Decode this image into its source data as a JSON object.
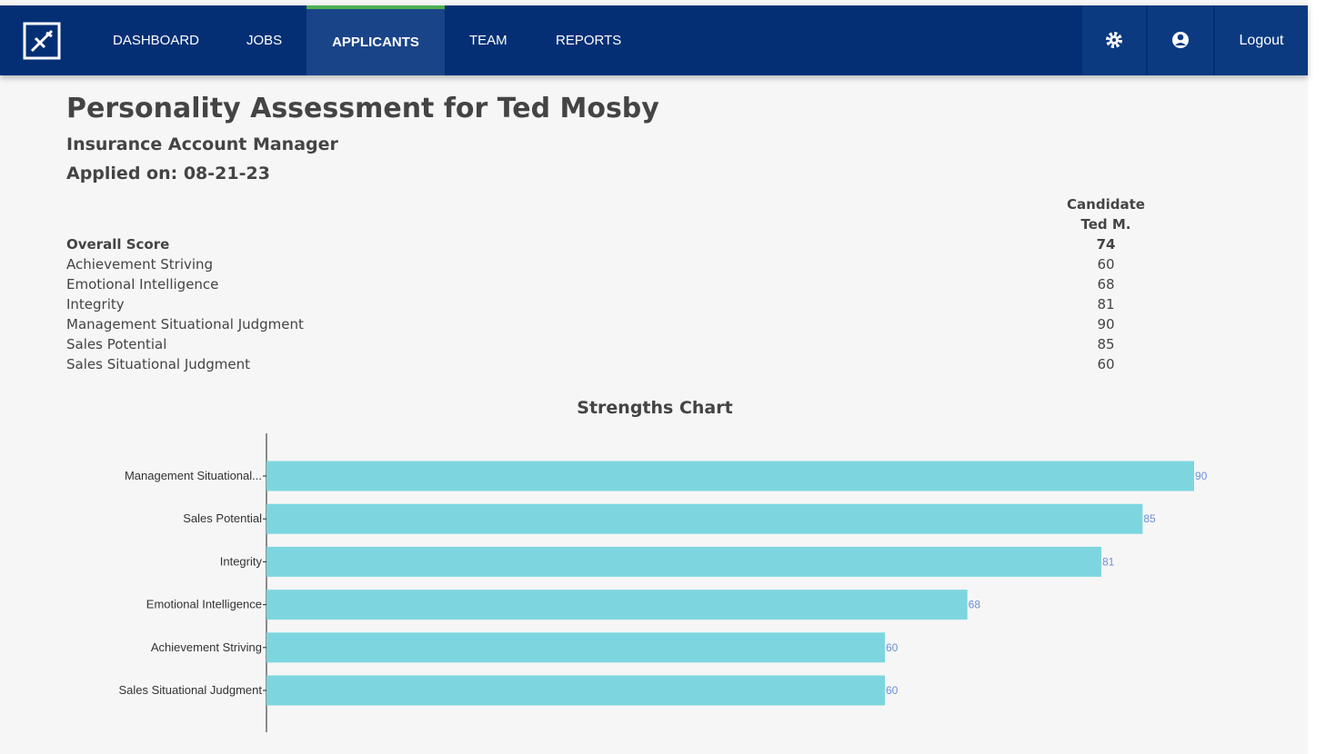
{
  "nav": {
    "items": [
      "DASHBOARD",
      "JOBS",
      "APPLICANTS",
      "TEAM",
      "REPORTS"
    ],
    "active": 2,
    "logout": "Logout"
  },
  "header": {
    "title": "Personality Assessment for Ted Mosby",
    "role": "Insurance Account Manager",
    "applied": "Applied on: 08-21-23"
  },
  "table": {
    "header": [
      "Candidate",
      "Ted M."
    ],
    "rows": [
      [
        "Overall Score",
        74
      ],
      [
        "Achievement Striving",
        60
      ],
      [
        "Emotional Intelligence",
        68
      ],
      [
        "Integrity",
        81
      ],
      [
        "Management Situational Judgment",
        90
      ],
      [
        "Sales Potential",
        85
      ],
      [
        "Sales Situational Judgment",
        60
      ]
    ]
  },
  "chart_data": {
    "type": "hbar",
    "title": "Strengths Chart",
    "categories": [
      "Management Situational...",
      "Sales Potential",
      "Integrity",
      "Emotional Intelligence",
      "Achievement Striving",
      "Sales Situational Judgment"
    ],
    "values": [
      90,
      85,
      81,
      68,
      60,
      60
    ],
    "color": "#7dd6df",
    "label_color": "#6d8fd6",
    "xlim": [
      0,
      90
    ]
  }
}
